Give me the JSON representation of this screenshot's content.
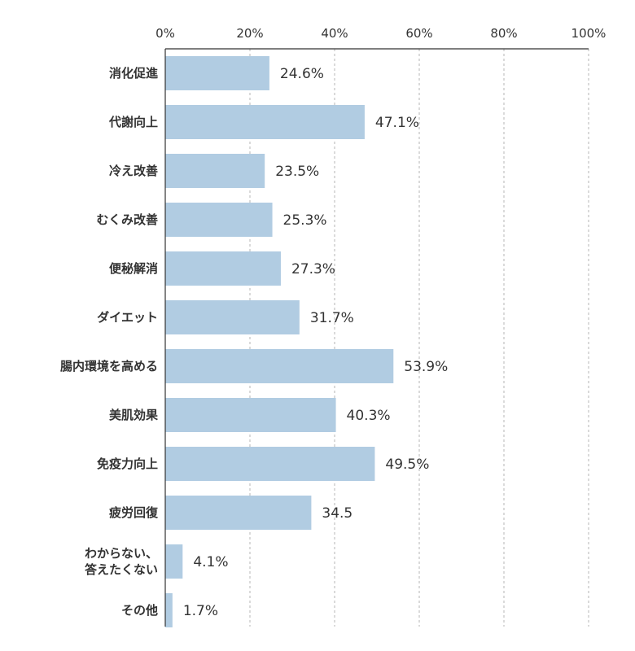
{
  "chart_data": {
    "type": "bar",
    "orientation": "horizontal",
    "categories": [
      [
        "消化促進"
      ],
      [
        "代謝向上"
      ],
      [
        "冷え改善"
      ],
      [
        "むくみ改善"
      ],
      [
        "便秘解消"
      ],
      [
        "ダイエット"
      ],
      [
        "腸内環境を高める"
      ],
      [
        "美肌効果"
      ],
      [
        "免疫力向上"
      ],
      [
        "疲労回復"
      ],
      [
        "わからない、",
        "答えたくない"
      ],
      [
        "その他"
      ]
    ],
    "values": [
      24.6,
      47.1,
      23.5,
      25.3,
      27.3,
      31.7,
      53.9,
      40.3,
      49.5,
      34.5,
      4.1,
      1.7
    ],
    "data_labels": [
      "24.6%",
      "47.1%",
      "23.5%",
      "25.3%",
      "27.3%",
      "31.7%",
      "53.9%",
      "40.3%",
      "49.5%",
      "34.5",
      "4.1%",
      "1.7%"
    ],
    "x_ticks": [
      "0%",
      "20%",
      "40%",
      "60%",
      "80%",
      "100%"
    ],
    "xlim": [
      0,
      100
    ],
    "axis_position": "top",
    "grid": true,
    "bar_color": "#b1cce2"
  }
}
